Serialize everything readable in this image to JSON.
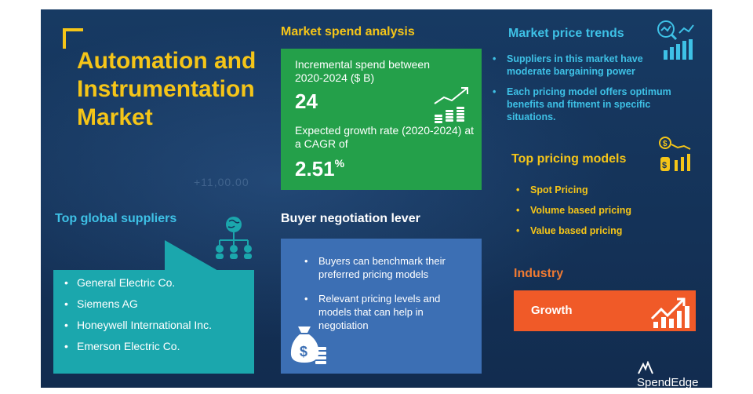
{
  "title": "Automation and Instrumentation Market",
  "faint_number": "+11,00.00",
  "market_spend": {
    "heading": "Market spend analysis",
    "incremental_label": "Incremental spend between 2020-2024 ($ B)",
    "incremental_value": "24",
    "growth_label": "Expected growth rate (2020-2024) at a CAGR of",
    "growth_value": "2.51",
    "growth_unit": "%"
  },
  "price_trends": {
    "heading": "Market price trends",
    "items": [
      "Suppliers in this market have moderate bargaining power",
      "Each pricing model offers optimum benefits and fitment in specific situations."
    ]
  },
  "pricing_models": {
    "heading": "Top pricing models",
    "items": [
      "Spot Pricing",
      "Volume based pricing",
      "Value based pricing"
    ]
  },
  "suppliers": {
    "heading": "Top global suppliers",
    "items": [
      "General Electric Co.",
      "Siemens AG",
      "Honeywell International Inc.",
      "Emerson Electric Co."
    ]
  },
  "buyer": {
    "heading": "Buyer negotiation lever",
    "items": [
      "Buyers can benchmark their preferred pricing models",
      "Relevant pricing levels and models that can help in negotiation"
    ]
  },
  "industry": {
    "heading": "Industry",
    "label": "Growth"
  },
  "brand": "SpendEdge",
  "colors": {
    "background": "#15335a",
    "accent_yellow": "#f5c518",
    "accent_cyan": "#3ec1e6",
    "accent_orange": "#f07a32",
    "spend_green": "#24a04a",
    "buyer_blue": "#3c6fb4",
    "supplier_teal": "#1ba7ad",
    "growth_orange": "#f05a28"
  },
  "icons": [
    "growth-coins-icon",
    "price-trend-chart-icon",
    "pricing-dollar-chart-icon",
    "globe-network-icon",
    "money-bag-icon",
    "growth-chart-icon",
    "spendedge-logo-icon"
  ]
}
